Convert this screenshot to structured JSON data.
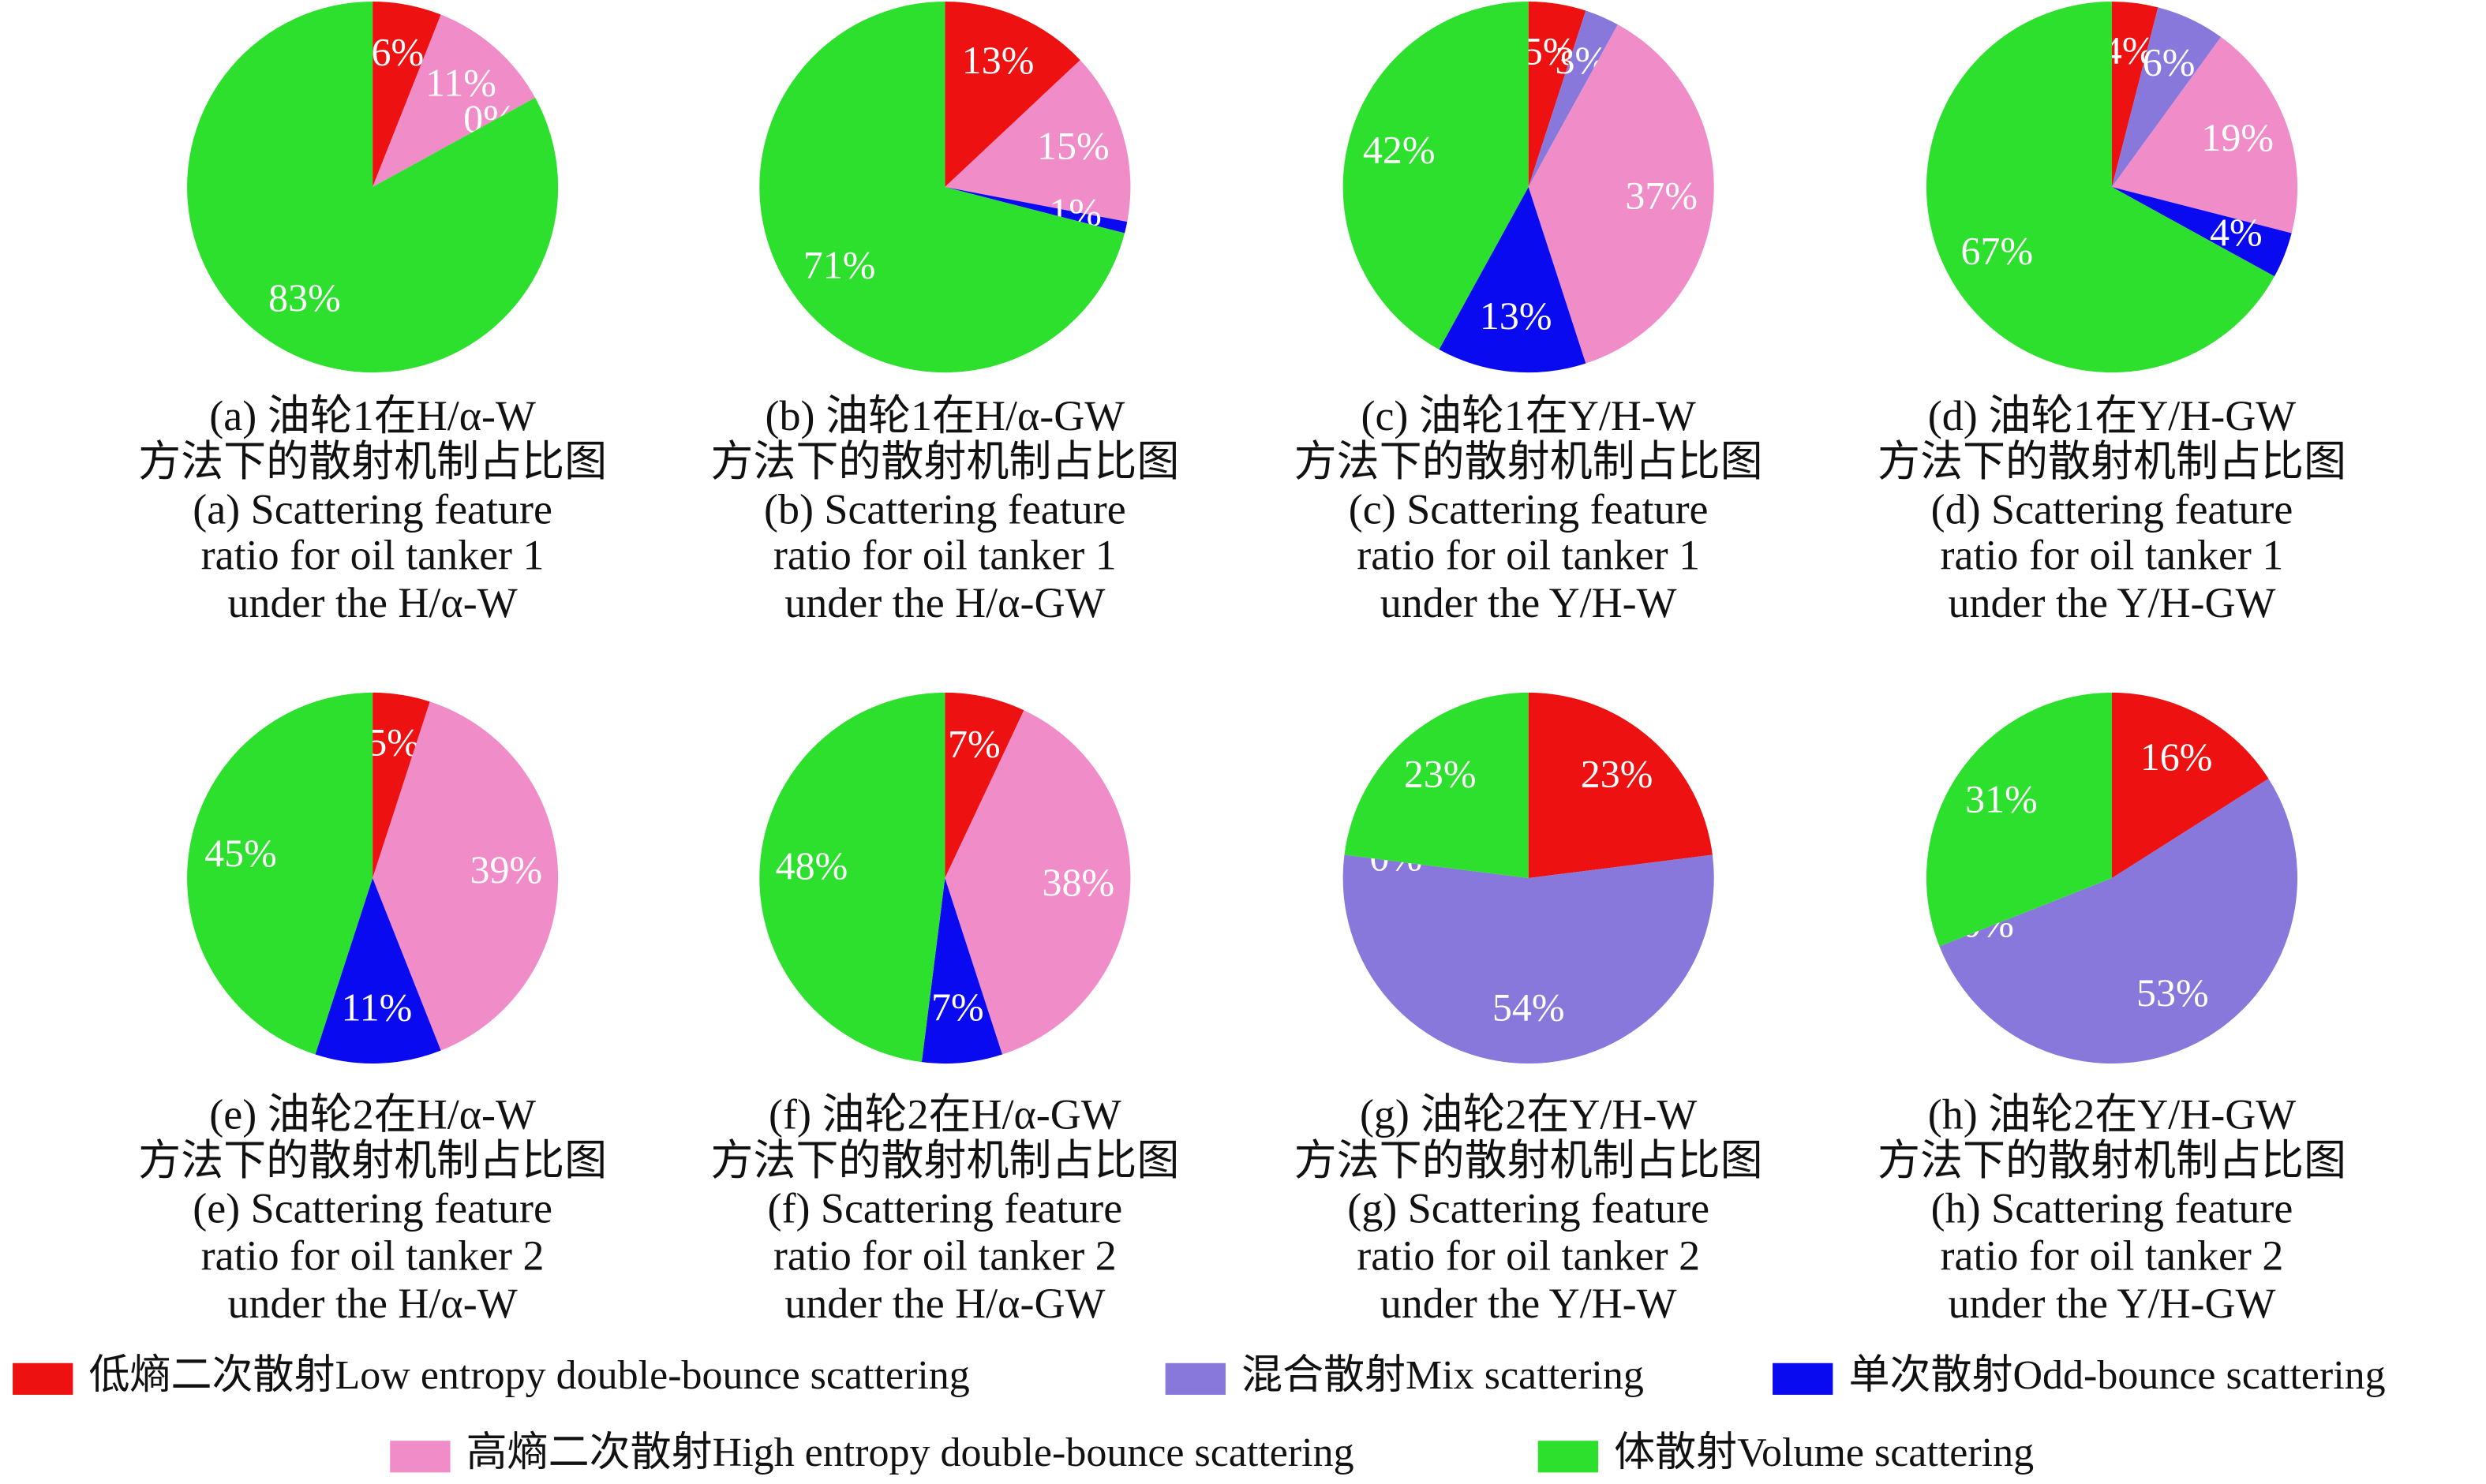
{
  "chart_data": [
    {
      "type": "pie",
      "caption": [
        "(a) 油轮1在H/α-W",
        "方法下的散射机制占比图",
        "(a) Scattering feature",
        "ratio for oil tanker 1",
        "under the H/α-W"
      ],
      "values": [
        6,
        null,
        0,
        11,
        83
      ],
      "value_labels": [
        "6%",
        null,
        "0%",
        "11%",
        "83%"
      ]
    },
    {
      "type": "pie",
      "caption": [
        "(b) 油轮1在H/α-GW",
        "方法下的散射机制占比图",
        "(b) Scattering feature",
        "ratio for oil tanker 1",
        "under the H/α-GW"
      ],
      "values": [
        13,
        null,
        1,
        15,
        71
      ],
      "value_labels": [
        "13%",
        null,
        "1%",
        "15%",
        "71%"
      ]
    },
    {
      "type": "pie",
      "caption": [
        "(c) 油轮1在Y/H-W",
        "方法下的散射机制占比图",
        "(c) Scattering feature",
        "ratio for oil tanker 1",
        "under the Y/H-W"
      ],
      "values": [
        5,
        3,
        13,
        37,
        42
      ],
      "value_labels": [
        "5%",
        "3%",
        "13%",
        "37%",
        "42%"
      ]
    },
    {
      "type": "pie",
      "caption": [
        "(d) 油轮1在Y/H-GW",
        "方法下的散射机制占比图",
        "(d) Scattering feature",
        "ratio for oil tanker 1",
        "under the Y/H-GW"
      ],
      "values": [
        4,
        6,
        4,
        19,
        67
      ],
      "value_labels": [
        "4%",
        "6%",
        "4%",
        "19%",
        "67%"
      ]
    },
    {
      "type": "pie",
      "caption": [
        "(e) 油轮2在H/α-W",
        "方法下的散射机制占比图",
        "(e) Scattering feature",
        "ratio for oil tanker 2",
        "under the H/α-W"
      ],
      "values": [
        5,
        null,
        11,
        39,
        45
      ],
      "value_labels": [
        "5%",
        null,
        "11%",
        "39%",
        "45%"
      ]
    },
    {
      "type": "pie",
      "caption": [
        "(f) 油轮2在H/α-GW",
        "方法下的散射机制占比图",
        "(f) Scattering feature",
        "ratio for oil tanker 2",
        "under the H/α-GW"
      ],
      "values": [
        7,
        null,
        7,
        38,
        48
      ],
      "value_labels": [
        "7%",
        null,
        "7%",
        "38%",
        "48%"
      ]
    },
    {
      "type": "pie",
      "caption": [
        "(g) 油轮2在Y/H-W",
        "方法下的散射机制占比图",
        "(g) Scattering feature",
        "ratio for oil tanker 2",
        "under the Y/H-W"
      ],
      "values": [
        23,
        54,
        0,
        null,
        23
      ],
      "value_labels": [
        "23%",
        "54%",
        "0%",
        null,
        "23%"
      ]
    },
    {
      "type": "pie",
      "caption": [
        "(h) 油轮2在Y/H-GW",
        "方法下的散射机制占比图",
        "(h) Scattering feature",
        "ratio for oil tanker 2",
        "under the Y/H-GW"
      ],
      "values": [
        16,
        53,
        0,
        null,
        31
      ],
      "value_labels": [
        "16%",
        "53%",
        "0%",
        null,
        "31%"
      ]
    }
  ],
  "legend": {
    "names": [
      "低熵二次散射Low entropy double-bounce scattering",
      "混合散射Mix scattering",
      "单次散射Odd-bounce scattering",
      "高熵二次散射High entropy double-bounce scattering",
      "体散射Volume scattering"
    ],
    "colors": [
      "#ee1111",
      "#8878dc",
      "#0a0af0",
      "#f08cc8",
      "#2ee02e"
    ]
  }
}
